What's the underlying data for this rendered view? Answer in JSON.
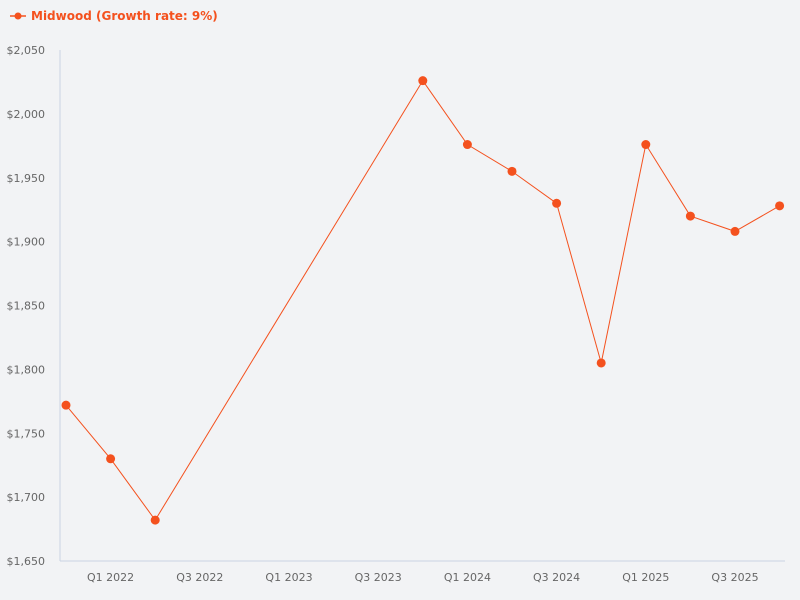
{
  "legend": {
    "label": "Midwood (Growth rate: 9%)",
    "color": "#f4511e"
  },
  "axes": {
    "y_ticks": [
      "$2,050",
      "$2,000",
      "$1,950",
      "$1,900",
      "$1,850",
      "$1,800",
      "$1,750",
      "$1,700",
      "$1,650"
    ],
    "x_ticks": [
      "Q1 2022",
      "Q3 2022",
      "Q1 2023",
      "Q3 2023",
      "Q1 2024",
      "Q3 2024",
      "Q1 2025",
      "Q3 2025"
    ]
  },
  "chart_data": {
    "type": "line",
    "title": "",
    "xlabel": "",
    "ylabel": "",
    "ylim": [
      1650,
      2050
    ],
    "grid": false,
    "legend_position": "top-left",
    "series": [
      {
        "name": "Midwood (Growth rate: 9%)",
        "color": "#f4511e",
        "x": [
          "Q4 2021",
          "Q1 2022",
          "Q2 2022",
          "Q4 2023",
          "Q1 2024",
          "Q2 2024",
          "Q3 2024",
          "Q4 2024",
          "Q1 2025",
          "Q2 2025",
          "Q3 2025",
          "Q4 2025"
        ],
        "values": [
          1772,
          1730,
          1682,
          2026,
          1976,
          1955,
          1930,
          1805,
          1976,
          1920,
          1908,
          1928
        ]
      }
    ],
    "x_tick_labels": [
      "Q1 2022",
      "Q3 2022",
      "Q1 2023",
      "Q3 2023",
      "Q1 2024",
      "Q3 2024",
      "Q1 2025",
      "Q3 2025"
    ],
    "y_tick_labels": [
      "$1,650",
      "$1,700",
      "$1,750",
      "$1,800",
      "$1,850",
      "$1,900",
      "$1,950",
      "$2,000",
      "$2,050"
    ]
  }
}
